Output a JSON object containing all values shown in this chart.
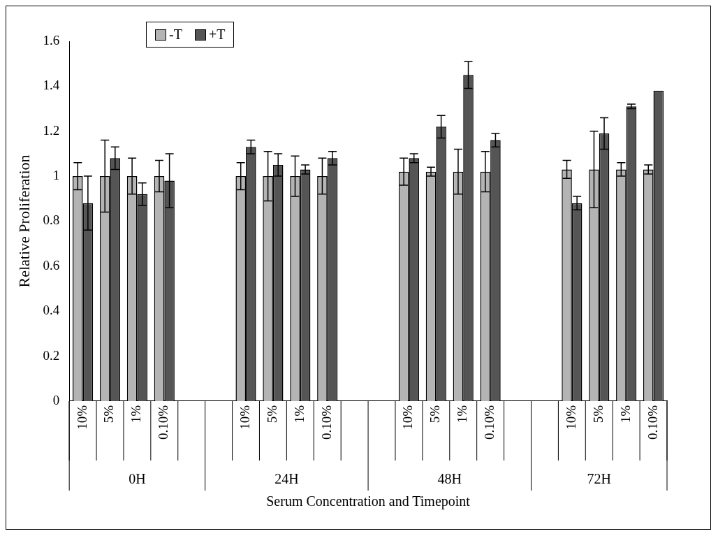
{
  "chart_data": {
    "type": "bar",
    "xlabel": "Serum Concentration and Timepoint",
    "ylabel": "Relative Proliferation",
    "categories": [
      "10%",
      "5%",
      "1%",
      "0.10%",
      null,
      null,
      "10%",
      "5%",
      "1%",
      "0.10%",
      null,
      null,
      "10%",
      "5%",
      "1%",
      "0.10%",
      null,
      null,
      "10%",
      "5%",
      "1%",
      "0.10%"
    ],
    "annotations": [
      "0H",
      "24H",
      "48H",
      "72H"
    ],
    "series": [
      {
        "name": "-T",
        "color": "#b4b4b4",
        "values": [
          1.0,
          1.0,
          1.0,
          1.0,
          null,
          null,
          1.0,
          1.0,
          1.0,
          1.0,
          null,
          null,
          1.02,
          1.02,
          1.02,
          1.02,
          null,
          null,
          1.03,
          1.03,
          1.03,
          1.03
        ],
        "errors": [
          0.06,
          0.16,
          0.08,
          0.07,
          null,
          null,
          0.06,
          0.11,
          0.09,
          0.08,
          null,
          null,
          0.06,
          0.02,
          0.1,
          0.09,
          null,
          null,
          0.04,
          0.17,
          0.03,
          0.02
        ]
      },
      {
        "name": "+T",
        "color": "#555555",
        "values": [
          0.88,
          1.08,
          0.92,
          0.98,
          null,
          null,
          1.13,
          1.05,
          1.03,
          1.08,
          null,
          null,
          1.08,
          1.22,
          1.45,
          1.16,
          null,
          null,
          0.88,
          1.19,
          1.31,
          1.38
        ],
        "errors": [
          0.12,
          0.05,
          0.05,
          0.12,
          null,
          null,
          0.03,
          0.05,
          0.02,
          0.03,
          null,
          null,
          0.02,
          0.05,
          0.06,
          0.03,
          null,
          null,
          0.03,
          0.07,
          0.01,
          null
        ]
      }
    ],
    "ylim": [
      0,
      1.6
    ],
    "yticks": [
      0,
      0.2,
      0.4,
      0.6,
      0.8,
      1,
      1.2,
      1.4,
      1.6
    ],
    "grid": false,
    "legend": "top left"
  }
}
